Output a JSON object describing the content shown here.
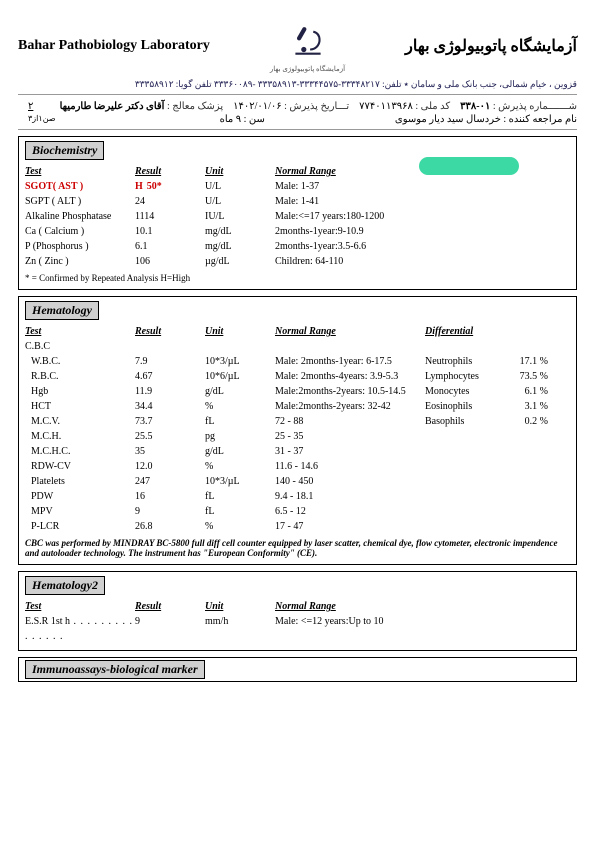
{
  "header": {
    "lab_en": "Bahar Pathobiology Laboratory",
    "lab_fa": "آزمایشگاه پاتوبیولوژی بهار",
    "sublogo": "آزمایشگاه پاتوبیولوژی بهار",
    "address": "قزوین ، خیام شمالی، جنب بانک ملی و سامان ٭ تلفن: ۳۳۳۴۸۲۱۷-۳۳۳۴۴۵۷۵-۳۳۳۵۸۹۱۳ -۳۳۳۶۰۰۸۹  تلفن گویا: ۳۳۳۵۸۹۱۲"
  },
  "patient": {
    "reg_no_lbl": "شـــــــماره پذیرش :",
    "reg_no": "۰۱-۳۳۸",
    "nat_lbl": "کد ملی :",
    "nat": "۷۷۴۰۱۱۳۹۶۸",
    "date_lbl": "تـــاریخ پذیرش :",
    "date": "۱۴۰۲/۰۱/۰۶",
    "dr_lbl": "پزشک معالج :",
    "dr": "آقای دکتر علیرضا طارمیها",
    "page": "۲",
    "name_lbl": "نام مراجعه کننده :",
    "name": "خردسال سید دیار موسوی",
    "age_lbl": "سن :",
    "age": "۹  ماه",
    "from": "صن۱از۳"
  },
  "bio": {
    "title": "Biochemistry",
    "hdr": {
      "test": "Test",
      "result": "Result",
      "unit": "Unit",
      "range": "Normal Range"
    },
    "rows": [
      {
        "test": "SGOT( AST )",
        "flag": "H",
        "result": "50*",
        "unit": "U/L",
        "range": "Male: 1-37",
        "red": true
      },
      {
        "test": "SGPT ( ALT )",
        "result": "24",
        "unit": "U/L",
        "range": "Male: 1-41"
      },
      {
        "test": "Alkaline Phosphatase",
        "result": "1114",
        "unit": "IU/L",
        "range": "Male:<=17 years:180-1200"
      },
      {
        "test": "Ca ( Calcium )",
        "result": "10.1",
        "unit": "mg/dL",
        "range": "2months-1year:9-10.9"
      },
      {
        "test": "P (Phosphorus )",
        "result": "6.1",
        "unit": "mg/dL",
        "range": "2months-1year:3.5-6.6"
      },
      {
        "test": "Zn ( Zinc )",
        "result": "106",
        "unit": "µg/dL",
        "range": "Children:  64-110"
      }
    ],
    "note": "* = Confirmed by Repeated Analysis      H=High"
  },
  "hema": {
    "title": "Hematology",
    "hdr": {
      "test": "Test",
      "result": "Result",
      "unit": "Unit",
      "range": "Normal Range",
      "diff": "Differential"
    },
    "cbc": "C.B.C",
    "rows": [
      {
        "test": "W.B.C.",
        "result": "7.9",
        "unit": "10*3/µL",
        "range": "Male: 2months-1year: 6-17.5",
        "dl": "Neutrophils",
        "dv": "17.1 %"
      },
      {
        "test": "R.B.C.",
        "result": "4.67",
        "unit": "10*6/µL",
        "range": "Male: 2months-4years: 3.9-5.3",
        "dl": "Lymphocytes",
        "dv": "73.5 %"
      },
      {
        "test": "Hgb",
        "result": "11.9",
        "unit": "g/dL",
        "range": "Male:2months-2years: 10.5-14.5",
        "dl": "Monocytes",
        "dv": "6.1 %"
      },
      {
        "test": "HCT",
        "result": "34.4",
        "unit": "%",
        "range": "Male:2months-2years: 32-42",
        "dl": "Eosinophils",
        "dv": "3.1 %"
      },
      {
        "test": "M.C.V.",
        "result": "73.7",
        "unit": "fL",
        "range": "72 - 88",
        "dl": "Basophils",
        "dv": "0.2 %"
      },
      {
        "test": "M.C.H.",
        "result": "25.5",
        "unit": "pg",
        "range": "25 - 35"
      },
      {
        "test": "M.C.H.C.",
        "result": "35",
        "unit": "g/dL",
        "range": "31 - 37"
      },
      {
        "test": "RDW-CV",
        "result": "12.0",
        "unit": "%",
        "range": "11.6 - 14.6"
      },
      {
        "test": "Platelets",
        "result": "247",
        "unit": "10*3/µL",
        "range": "140 - 450"
      },
      {
        "test": "PDW",
        "result": "16",
        "unit": "fL",
        "range": "9.4 - 18.1"
      },
      {
        "test": "MPV",
        "result": "9",
        "unit": "fL",
        "range": "6.5 - 12"
      },
      {
        "test": "P-LCR",
        "result": "26.8",
        "unit": "%",
        "range": "17 - 47"
      }
    ],
    "note": "CBC was performed by MINDRAY BC-5800 full diff cell counter equipped by laser scatter, chemical dye, flow cytometer, electronic impendence and autoloader technology. The instrument has \"European Conformity\" (CE)."
  },
  "hema2": {
    "title": "Hematology2",
    "hdr": {
      "test": "Test",
      "result": "Result",
      "unit": "Unit",
      "range": "Normal Range"
    },
    "rows": [
      {
        "test": "E.S.R 1st h",
        "result": "9",
        "unit": "mm/h",
        "range": "Male: <=12 years:Up to 10"
      }
    ]
  },
  "immuno": {
    "title": "Immunoassays-biological marker"
  },
  "colors": {
    "red": "#cc0000",
    "highlight": "#3dd9a5",
    "section_bg": "#d0d0d0"
  }
}
